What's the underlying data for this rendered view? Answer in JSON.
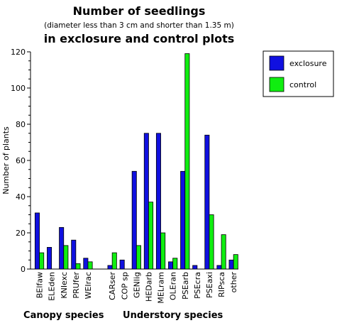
{
  "chart_data": {
    "type": "bar",
    "title": "Number of seedlings",
    "subtitle": "(diameter less than 3 cm and shorter than 1.35 m)",
    "title_line3": "in exclosure and control plots",
    "xlabel": "",
    "ylabel": "Number of plants",
    "ylim": [
      0,
      120
    ],
    "yticks": [
      0,
      20,
      40,
      60,
      80,
      100,
      120
    ],
    "grid": false,
    "legend_position": "top-right",
    "categories": [
      "BElfaw",
      "ELEden",
      "KNIexc",
      "PRUfer",
      "WEIrac",
      "",
      "CARser",
      "COP sp",
      "GENlig",
      "HEDarb",
      "MELram",
      "OLEran",
      "PSEarb",
      "PSEcra",
      "PSEaxi",
      "RIPsca",
      "other"
    ],
    "groups": [
      {
        "label": "Canopy species",
        "from": 0,
        "to": 4
      },
      {
        "label": "Understory species",
        "from": 6,
        "to": 16
      }
    ],
    "series": [
      {
        "name": "exclosure",
        "color": "#1010e0",
        "values": [
          31,
          12,
          23,
          16,
          6,
          null,
          2,
          5,
          54,
          75,
          75,
          4,
          54,
          2,
          74,
          2,
          5
        ]
      },
      {
        "name": "control",
        "color": "#10ee10",
        "values": [
          9,
          0,
          13,
          3,
          4,
          null,
          9,
          0,
          13,
          37,
          20,
          6,
          119,
          0,
          30,
          19,
          8
        ]
      }
    ]
  }
}
